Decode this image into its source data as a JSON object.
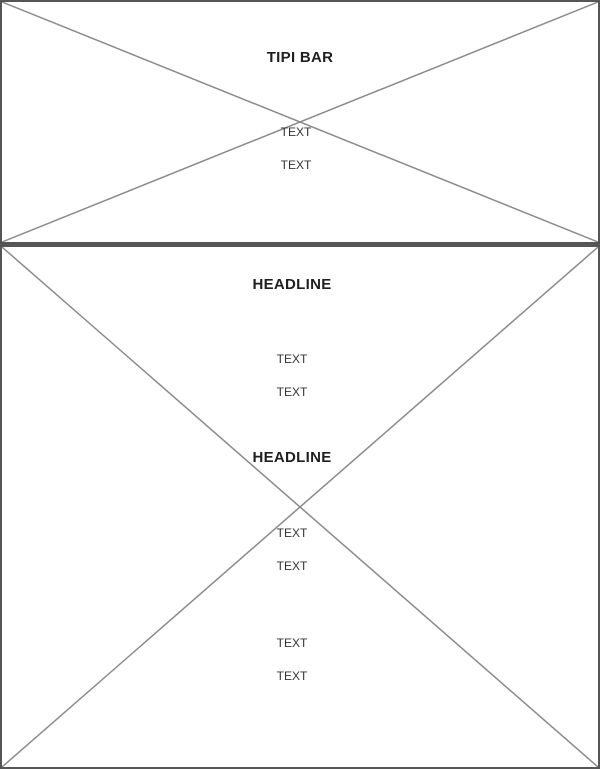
{
  "top_banner": {
    "title": "TIPI BAR",
    "lines": [
      "TEXT",
      "TEXT"
    ]
  },
  "content": {
    "sections": [
      {
        "headline": "HEADLINE",
        "lines": [
          "TEXT",
          "TEXT"
        ]
      },
      {
        "headline": "HEADLINE",
        "lines": [
          "TEXT",
          "TEXT",
          "TEXT",
          "TEXT"
        ]
      }
    ]
  },
  "colors": {
    "border": "#555555",
    "placeholder_line": "#8a8a8a",
    "text": "#222222"
  }
}
